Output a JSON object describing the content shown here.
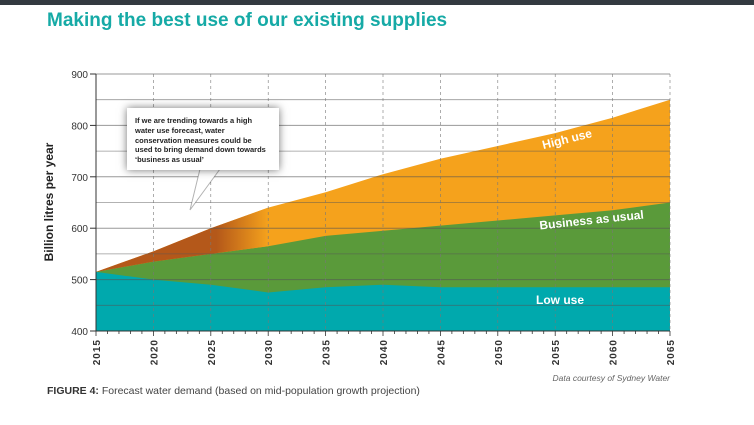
{
  "title": "Making the best use of our existing supplies",
  "callout": "If we are trending towards a high water use forecast, water conservation measures could be used to bring demand down towards ‘business as usual’",
  "caption_label": "FIGURE 4:",
  "caption_text": " Forecast water demand (based on mid-population growth projection)",
  "credit": "Data courtesy of Sydney Water",
  "chart_data": {
    "type": "area",
    "ylabel": "Billion litres per year",
    "xlabel": "",
    "x": [
      2015,
      2020,
      2025,
      2030,
      2035,
      2040,
      2045,
      2050,
      2055,
      2060,
      2065
    ],
    "xlim": [
      2015,
      2065
    ],
    "ylim": [
      400,
      900
    ],
    "yticks": [
      400,
      500,
      600,
      700,
      800,
      900
    ],
    "xticks": [
      "2015",
      "2020",
      "2025",
      "2030",
      "2035",
      "2040",
      "2045",
      "2050",
      "2055",
      "2060",
      "2065"
    ],
    "grid": true,
    "series": [
      {
        "name": "High use",
        "color": "#f5a21c",
        "values": [
          515,
          555,
          600,
          640,
          670,
          705,
          735,
          760,
          785,
          815,
          850
        ]
      },
      {
        "name": "Business as usual",
        "color": "#5a9a3a",
        "values": [
          515,
          535,
          550,
          565,
          585,
          595,
          605,
          615,
          625,
          635,
          650
        ]
      },
      {
        "name": "Low use",
        "color": "#00a9ad",
        "values": [
          515,
          500,
          490,
          475,
          485,
          490,
          485,
          485,
          485,
          485,
          485
        ]
      }
    ],
    "highlight_color": "#b4581a"
  }
}
